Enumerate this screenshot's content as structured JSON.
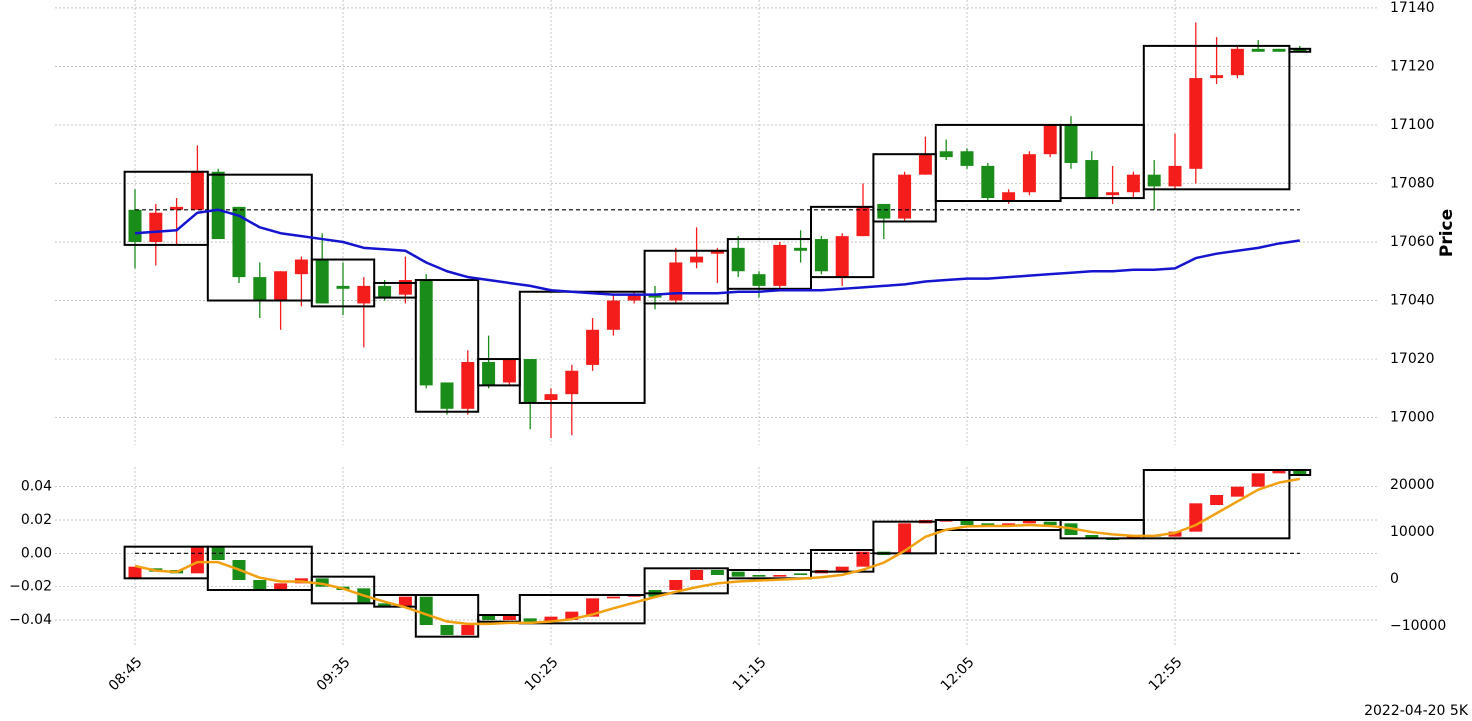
{
  "footer": "2022-04-20 5K",
  "chart_data": [
    {
      "type": "candlestick",
      "ylabel": "Price",
      "yaxis_side": "right",
      "grid": true,
      "up_color": "#f51c1c",
      "down_color": "#1a8c1a",
      "categories": [
        "08:45",
        null,
        null,
        null,
        null,
        null,
        null,
        null,
        null,
        null,
        "09:35",
        null,
        null,
        null,
        null,
        null,
        null,
        null,
        null,
        null,
        "10:25",
        null,
        null,
        null,
        null,
        null,
        null,
        null,
        null,
        null,
        "11:15",
        null,
        null,
        null,
        null,
        null,
        null,
        null,
        null,
        null,
        "12:05",
        null,
        null,
        null,
        null,
        null,
        null,
        null,
        null,
        null,
        "12:55",
        null,
        null,
        null,
        null,
        null,
        null
      ],
      "open": [
        17071,
        17060,
        17071,
        17071,
        17084,
        17072,
        17048,
        17040,
        17049,
        17054,
        17045,
        17039,
        17045,
        17042,
        17047,
        17012,
        17003,
        17019,
        17012,
        17020,
        17006,
        17008,
        17018,
        17030,
        17040,
        17042,
        17040,
        17053,
        17056,
        17058,
        17049,
        17045,
        17058,
        17061,
        17048,
        17062,
        17073,
        17068,
        17083,
        17091,
        17091,
        17086,
        17074,
        17077,
        17090,
        17100,
        17088,
        17076,
        17077,
        17083,
        17079,
        17085,
        17116,
        17117,
        17126,
        17126,
        17126
      ],
      "high": [
        17078,
        17073,
        17075,
        17093,
        17085,
        17072,
        17053,
        17050,
        17055,
        17063,
        17053,
        17048,
        17047,
        17055,
        17049,
        17012,
        17023,
        17028,
        17020,
        17020,
        17010,
        17018,
        17034,
        17042,
        17043,
        17045,
        17058,
        17065,
        17058,
        17062,
        17050,
        17060,
        17064,
        17062,
        17063,
        17080,
        17073,
        17084,
        17096,
        17095,
        17092,
        17087,
        17078,
        17091,
        17100,
        17103,
        17091,
        17086,
        17084,
        17088,
        17097,
        17135,
        17130,
        17127,
        17129,
        17126,
        17127
      ],
      "low": [
        17051,
        17052,
        17059,
        17071,
        17061,
        17046,
        17034,
        17030,
        17038,
        17039,
        17035,
        17024,
        17040,
        17039,
        17010,
        17001,
        17001,
        17010,
        17011,
        16996,
        16993,
        16994,
        17016,
        17028,
        17039,
        17037,
        17039,
        17051,
        17046,
        17048,
        17041,
        17044,
        17053,
        17049,
        17045,
        17062,
        17061,
        17067,
        17083,
        17088,
        17085,
        17074,
        17073,
        17076,
        17089,
        17085,
        17075,
        17073,
        17075,
        17071,
        17078,
        17080,
        17114,
        17116,
        17125,
        17125,
        17125
      ],
      "close": [
        17060,
        17070,
        17072,
        17084,
        17061,
        17048,
        17040,
        17050,
        17054,
        17039,
        17044,
        17045,
        17041,
        17047,
        17011,
        17003,
        17019,
        17011,
        17020,
        17005,
        17008,
        17016,
        17030,
        17040,
        17042,
        17041,
        17053,
        17055,
        17057,
        17050,
        17045,
        17059,
        17057,
        17050,
        17062,
        17072,
        17068,
        17083,
        17090,
        17089,
        17086,
        17075,
        17077,
        17090,
        17100,
        17087,
        17075,
        17077,
        17083,
        17079,
        17086,
        17116,
        17117,
        17126,
        17125,
        17125,
        17125
      ],
      "line": {
        "color": "#1515d0",
        "values": [
          17063,
          17063.5,
          17064,
          17070,
          17071,
          17069,
          17065,
          17063,
          17062,
          17061,
          17060,
          17058,
          17057.5,
          17057,
          17053,
          17050,
          17048,
          17047,
          17046,
          17045,
          17043.5,
          17043,
          17042.5,
          17042,
          17042,
          17042,
          17042.5,
          17042.5,
          17042.5,
          17043,
          17043,
          17043.5,
          17043.5,
          17043.5,
          17044,
          17044.5,
          17045,
          17045.5,
          17046.5,
          17047,
          17047.5,
          17047.5,
          17048,
          17048.5,
          17049,
          17049.5,
          17050,
          17050,
          17050.5,
          17050.5,
          17051,
          17054.5,
          17056,
          17057,
          17058,
          17059.5,
          17060.5
        ]
      },
      "reference_line": 17071,
      "boxes": [
        {
          "start": 0,
          "end": 3,
          "low": 17059,
          "high": 17084
        },
        {
          "start": 4,
          "end": 8,
          "low": 17040,
          "high": 17083
        },
        {
          "start": 9,
          "end": 11,
          "low": 17038,
          "high": 17054
        },
        {
          "start": 12,
          "end": 13,
          "low": 17041,
          "high": 17046
        },
        {
          "start": 14,
          "end": 16,
          "low": 17002,
          "high": 17047
        },
        {
          "start": 17,
          "end": 18,
          "low": 17011,
          "high": 17020
        },
        {
          "start": 19,
          "end": 24,
          "low": 17005,
          "high": 17043
        },
        {
          "start": 25,
          "end": 28,
          "low": 17039,
          "high": 17057
        },
        {
          "start": 29,
          "end": 32,
          "low": 17044,
          "high": 17061
        },
        {
          "start": 33,
          "end": 35,
          "low": 17048,
          "high": 17072
        },
        {
          "start": 36,
          "end": 38,
          "low": 17067,
          "high": 17090
        },
        {
          "start": 39,
          "end": 44,
          "low": 17074,
          "high": 17100
        },
        {
          "start": 45,
          "end": 48,
          "low": 17075,
          "high": 17100
        },
        {
          "start": 49,
          "end": 55,
          "low": 17078,
          "high": 17127
        },
        {
          "start": 56,
          "end": 56,
          "low": 17125,
          "high": 17126
        }
      ],
      "ylim": [
        16992,
        17142
      ],
      "yticks": [
        17000,
        17020,
        17040,
        17060,
        17080,
        17100,
        17120,
        17140
      ]
    },
    {
      "type": "candlestick",
      "yaxis_side": "left",
      "grid": true,
      "up_color": "#f51c1c",
      "down_color": "#1a8c1a",
      "open": [
        -0.015,
        -0.009,
        -0.01,
        -0.012,
        0.004,
        -0.004,
        -0.016,
        -0.022,
        -0.018,
        -0.015,
        -0.02,
        -0.021,
        -0.03,
        -0.032,
        -0.026,
        -0.043,
        -0.049,
        -0.037,
        -0.04,
        -0.039,
        -0.041,
        -0.04,
        -0.038,
        -0.027,
        -0.026,
        -0.022,
        -0.022,
        -0.016,
        -0.01,
        -0.011,
        -0.013,
        -0.014,
        -0.012,
        -0.012,
        -0.011,
        -0.008,
        0.001,
        0.0,
        0.018,
        0.019,
        0.02,
        0.018,
        0.016,
        0.018,
        0.019,
        0.018,
        0.011,
        0.009,
        0.009,
        0.011,
        0.01,
        0.013,
        0.029,
        0.034,
        0.04,
        0.048,
        0.05
      ],
      "close": [
        -0.008,
        -0.011,
        -0.012,
        0.004,
        -0.004,
        -0.016,
        -0.022,
        -0.018,
        -0.015,
        -0.02,
        -0.022,
        -0.03,
        -0.032,
        -0.026,
        -0.043,
        -0.049,
        -0.043,
        -0.04,
        -0.037,
        -0.041,
        -0.038,
        -0.035,
        -0.027,
        -0.026,
        -0.025,
        -0.026,
        -0.016,
        -0.01,
        -0.013,
        -0.014,
        -0.014,
        -0.013,
        -0.013,
        -0.01,
        -0.008,
        0.001,
        -0.001,
        0.018,
        0.02,
        0.02,
        0.017,
        0.016,
        0.018,
        0.02,
        0.017,
        0.011,
        0.009,
        0.008,
        0.011,
        0.01,
        0.013,
        0.03,
        0.035,
        0.04,
        0.048,
        0.05,
        0.047
      ],
      "line": {
        "color": "#f0a010",
        "axis": "y2",
        "values": [
          2800,
          1800,
          1500,
          3600,
          3600,
          2000,
          300,
          -500,
          -500,
          -1000,
          -2000,
          -3500,
          -4800,
          -6000,
          -7500,
          -9000,
          -9500,
          -9500,
          -9300,
          -9300,
          -9000,
          -8500,
          -7500,
          -6200,
          -5000,
          -3800,
          -2700,
          -1700,
          -900,
          -500,
          -300,
          -100,
          100,
          400,
          900,
          2000,
          3500,
          6000,
          9000,
          10500,
          11200,
          11300,
          11300,
          11500,
          11300,
          10800,
          10000,
          9500,
          9200,
          9200,
          9800,
          11500,
          14000,
          16500,
          19000,
          20500,
          21300
        ]
      },
      "reference_line": 0,
      "boxes": [
        {
          "start": 0,
          "end": 3,
          "low": -0.015,
          "high": 0.004
        },
        {
          "start": 4,
          "end": 8,
          "low": -0.022,
          "high": 0.004
        },
        {
          "start": 9,
          "end": 11,
          "low": -0.03,
          "high": -0.014
        },
        {
          "start": 12,
          "end": 13,
          "low": -0.032,
          "high": -0.025
        },
        {
          "start": 14,
          "end": 16,
          "low": -0.05,
          "high": -0.025
        },
        {
          "start": 17,
          "end": 18,
          "low": -0.041,
          "high": -0.037
        },
        {
          "start": 19,
          "end": 24,
          "low": -0.042,
          "high": -0.025
        },
        {
          "start": 25,
          "end": 28,
          "low": -0.024,
          "high": -0.009
        },
        {
          "start": 29,
          "end": 32,
          "low": -0.015,
          "high": -0.01
        },
        {
          "start": 33,
          "end": 35,
          "low": -0.011,
          "high": 0.002
        },
        {
          "start": 36,
          "end": 38,
          "low": 0.0,
          "high": 0.019
        },
        {
          "start": 39,
          "end": 44,
          "low": 0.014,
          "high": 0.02
        },
        {
          "start": 45,
          "end": 48,
          "low": 0.009,
          "high": 0.02
        },
        {
          "start": 49,
          "end": 55,
          "low": 0.009,
          "high": 0.05
        },
        {
          "start": 56,
          "end": 56,
          "low": 0.047,
          "high": 0.05
        }
      ],
      "ylim": [
        -0.055,
        0.053
      ],
      "yticks": [
        {
          "value": -0.04,
          "label": "−0.04"
        },
        {
          "value": -0.02,
          "label": "−0.02"
        },
        {
          "value": 0,
          "label": "0.00"
        },
        0.02,
        0.04
      ],
      "y2lim": [
        -14000,
        24250
      ],
      "y2ticks": [
        {
          "value": -10000,
          "label": "−10000"
        },
        0,
        10000,
        20000
      ]
    }
  ]
}
